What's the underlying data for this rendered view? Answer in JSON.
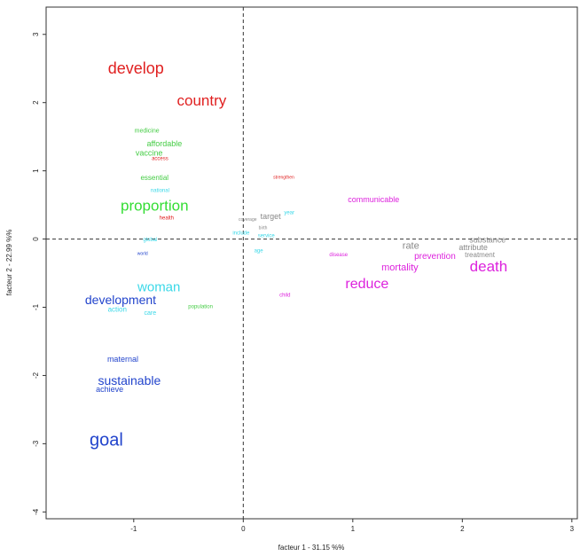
{
  "chart_data": {
    "type": "scatter",
    "title": "",
    "xlabel": "facteur  1  - 31.15 %%",
    "ylabel": "facteur 2 - 22.99 %%",
    "xlim": [
      -1.8,
      3.05
    ],
    "ylim": [
      -4.1,
      3.4
    ],
    "xticks": [
      -1,
      0,
      1,
      2,
      3
    ],
    "yticks": [
      -4,
      -3,
      -2,
      -1,
      0,
      1,
      2,
      3
    ],
    "grid": false,
    "reference_lines": {
      "x": 0,
      "y": 0,
      "style": "dashed"
    },
    "words": [
      {
        "text": "develop",
        "x": -0.98,
        "y": 2.5,
        "color": "#e02020",
        "size": 18
      },
      {
        "text": "country",
        "x": -0.38,
        "y": 2.03,
        "color": "#e02020",
        "size": 17
      },
      {
        "text": "medicine",
        "x": -0.88,
        "y": 1.58,
        "color": "#44cc44",
        "size": 7
      },
      {
        "text": "affordable",
        "x": -0.72,
        "y": 1.4,
        "color": "#44cc44",
        "size": 9
      },
      {
        "text": "vaccine",
        "x": -0.86,
        "y": 1.26,
        "color": "#44cc44",
        "size": 9
      },
      {
        "text": "access",
        "x": -0.76,
        "y": 1.17,
        "color": "#e02020",
        "size": 6
      },
      {
        "text": "essential",
        "x": -0.81,
        "y": 0.9,
        "color": "#44cc44",
        "size": 8
      },
      {
        "text": "national",
        "x": -0.76,
        "y": 0.7,
        "color": "#3ad8e8",
        "size": 6
      },
      {
        "text": "strengthen",
        "x": 0.37,
        "y": 0.9,
        "color": "#e02020",
        "size": 5
      },
      {
        "text": "communicable",
        "x": 1.19,
        "y": 0.58,
        "color": "#dd22dd",
        "size": 9
      },
      {
        "text": "proportion",
        "x": -0.81,
        "y": 0.49,
        "color": "#33dd33",
        "size": 17
      },
      {
        "text": "health",
        "x": -0.7,
        "y": 0.3,
        "color": "#e02020",
        "size": 6
      },
      {
        "text": "year",
        "x": 0.42,
        "y": 0.38,
        "color": "#3ad8e8",
        "size": 6
      },
      {
        "text": "target",
        "x": 0.25,
        "y": 0.33,
        "color": "#888888",
        "size": 9
      },
      {
        "text": "coverage",
        "x": 0.04,
        "y": 0.28,
        "color": "#888888",
        "size": 5
      },
      {
        "text": "birth",
        "x": 0.18,
        "y": 0.16,
        "color": "#888888",
        "size": 5
      },
      {
        "text": "include",
        "x": -0.02,
        "y": 0.08,
        "color": "#3ad8e8",
        "size": 6
      },
      {
        "text": "service",
        "x": 0.21,
        "y": 0.04,
        "color": "#3ad8e8",
        "size": 6
      },
      {
        "text": "global",
        "x": -0.85,
        "y": -0.02,
        "color": "#3ad8e8",
        "size": 6
      },
      {
        "text": "age",
        "x": 0.14,
        "y": -0.18,
        "color": "#3ad8e8",
        "size": 6
      },
      {
        "text": "world",
        "x": -0.92,
        "y": -0.22,
        "color": "#2244cc",
        "size": 5
      },
      {
        "text": "disease",
        "x": 0.87,
        "y": -0.24,
        "color": "#dd22dd",
        "size": 6
      },
      {
        "text": "rate",
        "x": 1.53,
        "y": -0.1,
        "color": "#888888",
        "size": 11
      },
      {
        "text": "substance",
        "x": 2.23,
        "y": -0.01,
        "color": "#888888",
        "size": 9
      },
      {
        "text": "attribute",
        "x": 2.1,
        "y": -0.12,
        "color": "#888888",
        "size": 9
      },
      {
        "text": "treatment",
        "x": 2.16,
        "y": -0.23,
        "color": "#888888",
        "size": 8
      },
      {
        "text": "prevention",
        "x": 1.75,
        "y": -0.26,
        "color": "#dd22dd",
        "size": 10
      },
      {
        "text": "mortality",
        "x": 1.43,
        "y": -0.42,
        "color": "#dd22dd",
        "size": 11
      },
      {
        "text": "death",
        "x": 2.24,
        "y": -0.4,
        "color": "#dd22dd",
        "size": 17
      },
      {
        "text": "reduce",
        "x": 1.13,
        "y": -0.66,
        "color": "#dd22dd",
        "size": 16
      },
      {
        "text": "woman",
        "x": -0.77,
        "y": -0.71,
        "color": "#3ad8e8",
        "size": 15
      },
      {
        "text": "child",
        "x": 0.38,
        "y": -0.83,
        "color": "#dd22dd",
        "size": 6
      },
      {
        "text": "development",
        "x": -1.12,
        "y": -0.89,
        "color": "#2244cc",
        "size": 14
      },
      {
        "text": "action",
        "x": -1.15,
        "y": -1.03,
        "color": "#3ad8e8",
        "size": 8
      },
      {
        "text": "population",
        "x": -0.39,
        "y": -1.0,
        "color": "#44cc44",
        "size": 6
      },
      {
        "text": "care",
        "x": -0.85,
        "y": -1.09,
        "color": "#3ad8e8",
        "size": 7
      },
      {
        "text": "maternal",
        "x": -1.1,
        "y": -1.76,
        "color": "#2244cc",
        "size": 9
      },
      {
        "text": "sustainable",
        "x": -1.04,
        "y": -2.07,
        "color": "#2244cc",
        "size": 14
      },
      {
        "text": "achieve",
        "x": -1.22,
        "y": -2.2,
        "color": "#2244cc",
        "size": 9
      },
      {
        "text": "goal",
        "x": -1.25,
        "y": -2.95,
        "color": "#2244cc",
        "size": 20
      }
    ]
  }
}
